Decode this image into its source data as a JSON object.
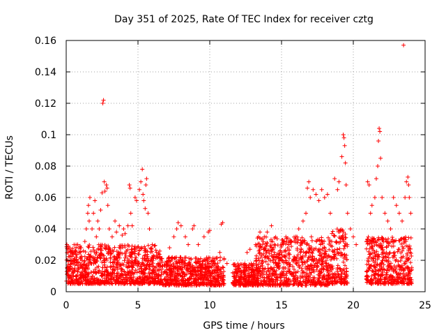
{
  "chart_data": {
    "type": "scatter",
    "title": "Day 351 of 2025, Rate Of TEC Index for receiver cztg",
    "xlabel": "GPS time / hours",
    "ylabel": "ROTI / TECUs",
    "xlim": [
      0,
      25
    ],
    "ylim": [
      0,
      0.16
    ],
    "x_ticks": [
      0,
      5,
      10,
      15,
      20,
      25
    ],
    "x_tick_labels": [
      "0",
      "5",
      "10",
      "15",
      "20",
      "25"
    ],
    "y_ticks": [
      0,
      0.02,
      0.04,
      0.06,
      0.08,
      0.1,
      0.12,
      0.14,
      0.16
    ],
    "y_tick_labels": [
      "0",
      "0.02",
      "0.04",
      "0.06",
      "0.08",
      "0.1",
      "0.12",
      "0.14",
      "0.16"
    ],
    "grid": true,
    "marker": "+",
    "color": "#ff0000",
    "series": [
      {
        "name": "ROTI",
        "points": [
          [
            0.05,
            0.03
          ],
          [
            0.15,
            0.029
          ],
          [
            0.25,
            0.028
          ],
          [
            0.3,
            0.02
          ],
          [
            0.4,
            0.018
          ],
          [
            0.5,
            0.012
          ],
          [
            0.6,
            0.015
          ],
          [
            0.7,
            0.022
          ],
          [
            0.8,
            0.03
          ],
          [
            0.9,
            0.025
          ],
          [
            1.0,
            0.028
          ],
          [
            1.1,
            0.02
          ],
          [
            1.2,
            0.026
          ],
          [
            1.3,
            0.032
          ],
          [
            1.4,
            0.04
          ],
          [
            1.5,
            0.05
          ],
          [
            1.55,
            0.055
          ],
          [
            1.6,
            0.045
          ],
          [
            1.65,
            0.06
          ],
          [
            1.8,
            0.04
          ],
          [
            1.9,
            0.05
          ],
          [
            2.0,
            0.058
          ],
          [
            2.1,
            0.035
          ],
          [
            2.2,
            0.045
          ],
          [
            2.3,
            0.04
          ],
          [
            2.4,
            0.052
          ],
          [
            2.5,
            0.063
          ],
          [
            2.55,
            0.12
          ],
          [
            2.6,
            0.122
          ],
          [
            2.65,
            0.07
          ],
          [
            2.7,
            0.064
          ],
          [
            2.8,
            0.068
          ],
          [
            2.85,
            0.066
          ],
          [
            2.9,
            0.055
          ],
          [
            3.0,
            0.04
          ],
          [
            3.2,
            0.035
          ],
          [
            3.4,
            0.045
          ],
          [
            3.5,
            0.038
          ],
          [
            3.7,
            0.042
          ],
          [
            3.9,
            0.036
          ],
          [
            4.0,
            0.04
          ],
          [
            4.1,
            0.037
          ],
          [
            4.3,
            0.042
          ],
          [
            4.4,
            0.068
          ],
          [
            4.45,
            0.066
          ],
          [
            4.5,
            0.05
          ],
          [
            4.6,
            0.042
          ],
          [
            4.8,
            0.06
          ],
          [
            4.9,
            0.058
          ],
          [
            5.1,
            0.065
          ],
          [
            5.2,
            0.07
          ],
          [
            5.3,
            0.078
          ],
          [
            5.35,
            0.062
          ],
          [
            5.4,
            0.058
          ],
          [
            5.5,
            0.053
          ],
          [
            5.55,
            0.068
          ],
          [
            5.6,
            0.072
          ],
          [
            5.7,
            0.05
          ],
          [
            5.8,
            0.04
          ],
          [
            6.0,
            0.03
          ],
          [
            6.3,
            0.025
          ],
          [
            6.6,
            0.02
          ],
          [
            7.2,
            0.028
          ],
          [
            7.5,
            0.035
          ],
          [
            7.7,
            0.04
          ],
          [
            7.8,
            0.044
          ],
          [
            8.0,
            0.042
          ],
          [
            8.3,
            0.035
          ],
          [
            8.5,
            0.03
          ],
          [
            8.8,
            0.04
          ],
          [
            8.9,
            0.042
          ],
          [
            9.2,
            0.03
          ],
          [
            9.6,
            0.035
          ],
          [
            9.9,
            0.038
          ],
          [
            10.0,
            0.039
          ],
          [
            10.3,
            0.02
          ],
          [
            10.7,
            0.025
          ],
          [
            10.8,
            0.043
          ],
          [
            10.9,
            0.044
          ],
          [
            11.2,
            0.018
          ],
          [
            11.6,
            0.012
          ],
          [
            12.0,
            0.015
          ],
          [
            12.6,
            0.025
          ],
          [
            12.8,
            0.027
          ],
          [
            13.2,
            0.03
          ],
          [
            13.5,
            0.038
          ],
          [
            13.8,
            0.035
          ],
          [
            14.0,
            0.038
          ],
          [
            14.3,
            0.042
          ],
          [
            14.5,
            0.03
          ],
          [
            14.8,
            0.022
          ],
          [
            15.0,
            0.025
          ],
          [
            15.3,
            0.02
          ],
          [
            15.5,
            0.03
          ],
          [
            15.7,
            0.032
          ],
          [
            16.0,
            0.035
          ],
          [
            16.2,
            0.04
          ],
          [
            16.5,
            0.045
          ],
          [
            16.7,
            0.05
          ],
          [
            16.8,
            0.066
          ],
          [
            16.9,
            0.07
          ],
          [
            17.0,
            0.06
          ],
          [
            17.2,
            0.065
          ],
          [
            17.4,
            0.062
          ],
          [
            17.6,
            0.058
          ],
          [
            17.8,
            0.065
          ],
          [
            18.0,
            0.06
          ],
          [
            18.2,
            0.062
          ],
          [
            18.4,
            0.05
          ],
          [
            18.7,
            0.072
          ],
          [
            18.9,
            0.065
          ],
          [
            19.0,
            0.07
          ],
          [
            19.2,
            0.086
          ],
          [
            19.3,
            0.1
          ],
          [
            19.35,
            0.098
          ],
          [
            19.4,
            0.093
          ],
          [
            19.45,
            0.082
          ],
          [
            19.5,
            0.068
          ],
          [
            19.6,
            0.05
          ],
          [
            19.8,
            0.04
          ],
          [
            20.0,
            0.035
          ],
          [
            20.2,
            0.03
          ],
          [
            21.0,
            0.07
          ],
          [
            21.1,
            0.068
          ],
          [
            21.2,
            0.05
          ],
          [
            21.3,
            0.055
          ],
          [
            21.5,
            0.06
          ],
          [
            21.6,
            0.072
          ],
          [
            21.7,
            0.08
          ],
          [
            21.75,
            0.096
          ],
          [
            21.8,
            0.104
          ],
          [
            21.85,
            0.102
          ],
          [
            21.9,
            0.085
          ],
          [
            22.0,
            0.06
          ],
          [
            22.2,
            0.05
          ],
          [
            22.4,
            0.045
          ],
          [
            22.6,
            0.04
          ],
          [
            22.8,
            0.06
          ],
          [
            23.0,
            0.055
          ],
          [
            23.2,
            0.05
          ],
          [
            23.4,
            0.045
          ],
          [
            23.5,
            0.157
          ],
          [
            23.6,
            0.06
          ],
          [
            23.7,
            0.07
          ],
          [
            23.8,
            0.073
          ],
          [
            23.85,
            0.068
          ],
          [
            23.9,
            0.06
          ],
          [
            24.0,
            0.05
          ]
        ],
        "dense_bands": [
          {
            "x_range": [
              0.0,
              6.7
            ],
            "y_range": [
              0.005,
              0.03
            ]
          },
          {
            "x_range": [
              6.7,
              11.0
            ],
            "y_range": [
              0.004,
              0.022
            ]
          },
          {
            "x_range": [
              11.6,
              13.2
            ],
            "y_range": [
              0.004,
              0.018
            ]
          },
          {
            "x_range": [
              13.2,
              18.5
            ],
            "y_range": [
              0.004,
              0.035
            ]
          },
          {
            "x_range": [
              18.5,
              19.6
            ],
            "y_range": [
              0.005,
              0.04
            ]
          },
          {
            "x_range": [
              20.9,
              24.1
            ],
            "y_range": [
              0.005,
              0.035
            ]
          }
        ]
      }
    ]
  }
}
